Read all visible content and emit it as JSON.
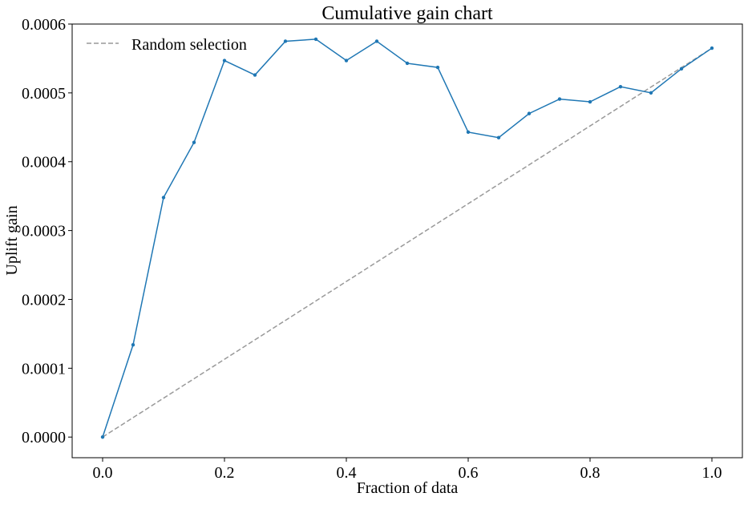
{
  "chart_data": {
    "type": "line",
    "title": "Cumulative gain chart",
    "xlabel": "Fraction of data",
    "ylabel": "Uplift gain",
    "xlim": [
      -0.05,
      1.05
    ],
    "ylim": [
      -3e-05,
      0.0006
    ],
    "grid": false,
    "legend_position": "top-left",
    "xticks": [
      0.0,
      0.2,
      0.4,
      0.6,
      0.8,
      1.0
    ],
    "xtick_labels": [
      "0.0",
      "0.2",
      "0.4",
      "0.6",
      "0.8",
      "1.0"
    ],
    "yticks": [
      0.0,
      0.0001,
      0.0002,
      0.0003,
      0.0004,
      0.0005,
      0.0006
    ],
    "ytick_labels": [
      "0.0000",
      "0.0001",
      "0.0002",
      "0.0003",
      "0.0004",
      "0.0005",
      "0.0006"
    ],
    "series": [
      {
        "color": "#1f77b4",
        "style": "solid",
        "marker": "dot",
        "x": [
          0.0,
          0.05,
          0.1,
          0.15,
          0.2,
          0.25,
          0.3,
          0.35,
          0.4,
          0.45,
          0.5,
          0.55,
          0.6,
          0.65,
          0.7,
          0.75,
          0.8,
          0.85,
          0.9,
          0.95,
          1.0
        ],
        "y": [
          0.0,
          0.000134,
          0.000348,
          0.000428,
          0.000547,
          0.000526,
          0.000575,
          0.000578,
          0.000547,
          0.000575,
          0.000543,
          0.000537,
          0.000443,
          0.000435,
          0.00047,
          0.000491,
          0.000487,
          0.000509,
          0.0005,
          0.000535,
          0.000565
        ]
      },
      {
        "name": "Random selection",
        "color": "#999999",
        "style": "dashed",
        "x": [
          0.0,
          1.0
        ],
        "y": [
          0.0,
          0.000565
        ]
      }
    ]
  }
}
